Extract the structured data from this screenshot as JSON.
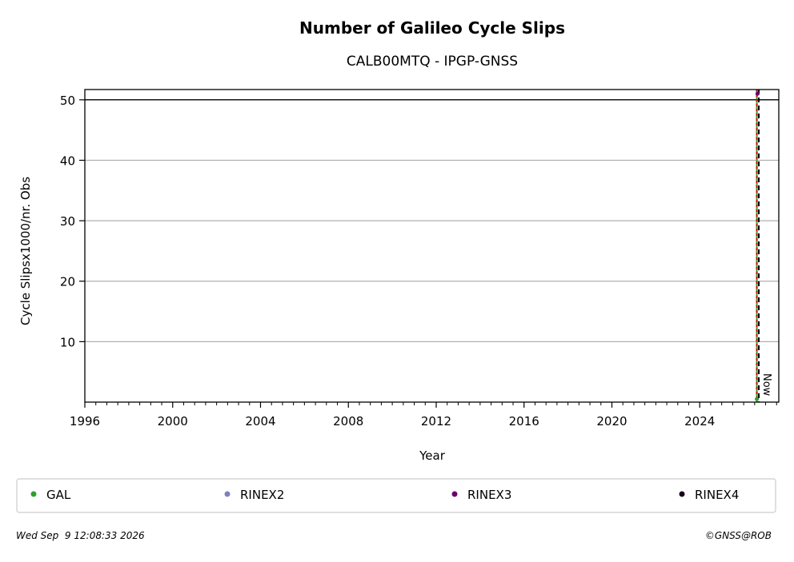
{
  "chart_data": {
    "type": "line",
    "title": "Number of Galileo Cycle Slips",
    "subtitle": "CALB00MTQ - IPGP-GNSS",
    "xlabel": "Year",
    "ylabel": "Cycle Slipsx1000/nr. Obs",
    "xlim": [
      1996,
      2027.6
    ],
    "ylim": [
      0,
      51.7
    ],
    "x_ticks": [
      1996,
      2000,
      2004,
      2008,
      2012,
      2016,
      2020,
      2024
    ],
    "y_ticks": [
      10,
      20,
      30,
      40,
      50
    ],
    "grid": "y",
    "threshold_line": 50,
    "now_marker": {
      "x": 2026.69,
      "label": "Now",
      "color": "#000000"
    },
    "red_marker": {
      "x": 2026.6,
      "color": "#dd0000"
    },
    "series": [
      {
        "name": "GAL",
        "color": "#2ca02c",
        "points": [
          {
            "x": 2026.6,
            "y": 0.5
          }
        ],
        "vline": true
      },
      {
        "name": "RINEX2",
        "color": "#7f7fbf",
        "points": []
      },
      {
        "name": "RINEX3",
        "color": "#6b006b",
        "points": [
          {
            "x": 2026.63,
            "y": 51
          }
        ]
      },
      {
        "name": "RINEX4",
        "color": "#1a0020",
        "points": []
      }
    ],
    "legend_position": "bottom"
  },
  "footer": {
    "timestamp": "Wed Sep  9 12:08:33 2026",
    "copyright": "©GNSS@ROB"
  }
}
